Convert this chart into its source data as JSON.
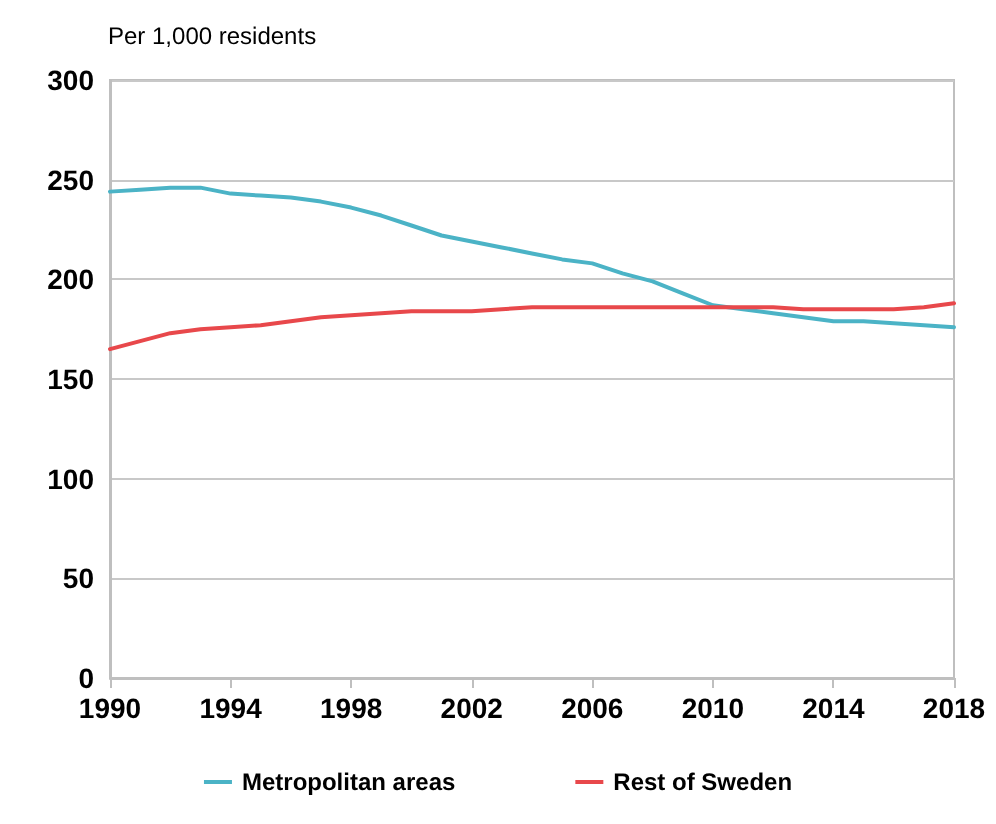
{
  "chart_data": {
    "type": "line",
    "ylabel": "Per 1,000 residents",
    "x": [
      1990,
      1991,
      1992,
      1993,
      1994,
      1995,
      1996,
      1997,
      1998,
      1999,
      2000,
      2001,
      2002,
      2003,
      2004,
      2005,
      2006,
      2007,
      2008,
      2009,
      2010,
      2011,
      2012,
      2013,
      2014,
      2015,
      2016,
      2017,
      2018
    ],
    "series": [
      {
        "name": "Metropolitan areas",
        "color": "#4bb3c6",
        "values": [
          244,
          245,
          246,
          246,
          243,
          242,
          241,
          239,
          236,
          232,
          227,
          222,
          219,
          216,
          213,
          210,
          208,
          203,
          199,
          193,
          187,
          185,
          183,
          181,
          179,
          179,
          178,
          177,
          176
        ]
      },
      {
        "name": "Rest of Sweden",
        "color": "#e8484b",
        "values": [
          165,
          169,
          173,
          175,
          176,
          177,
          179,
          181,
          182,
          183,
          184,
          184,
          184,
          185,
          186,
          186,
          186,
          186,
          186,
          186,
          186,
          186,
          186,
          185,
          185,
          185,
          185,
          186,
          188
        ]
      }
    ],
    "xlim": [
      1990,
      2018
    ],
    "xticks": [
      1990,
      1994,
      1998,
      2002,
      2006,
      2010,
      2014,
      2018
    ],
    "ylim": [
      0,
      300
    ],
    "yticks": [
      0,
      50,
      100,
      150,
      200,
      250,
      300
    ],
    "grid": "y",
    "legend": "bottom",
    "marker": "none",
    "line_style": "solid"
  }
}
